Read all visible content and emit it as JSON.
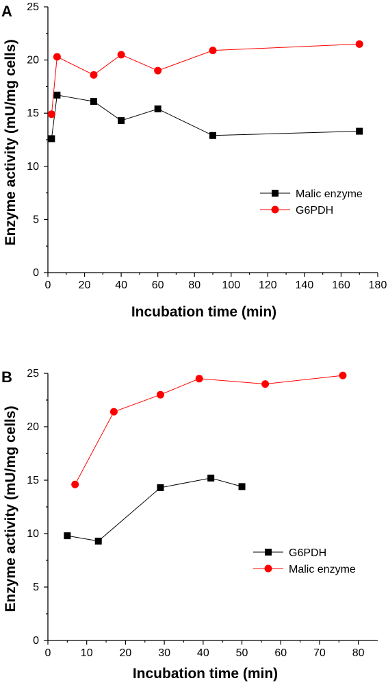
{
  "chart_data": [
    {
      "type": "line",
      "panel_label": "A",
      "xlabel": "Incubation time (min)",
      "ylabel": "Enzyme activity (mU/mg cells)",
      "xlim": [
        0,
        180
      ],
      "ylim": [
        0,
        25
      ],
      "xticks": [
        0,
        20,
        40,
        60,
        80,
        100,
        120,
        140,
        160,
        180
      ],
      "yticks": [
        0,
        5,
        10,
        15,
        20,
        25
      ],
      "grid": false,
      "legend_position": "center-right",
      "series": [
        {
          "name": "Malic enzyme",
          "color": "#000000",
          "marker": "square",
          "x": [
            2,
            5,
            25,
            40,
            60,
            90,
            170
          ],
          "y": [
            12.6,
            16.7,
            16.1,
            14.3,
            15.4,
            12.9,
            13.3
          ]
        },
        {
          "name": "G6PDH",
          "color": "#ff0000",
          "marker": "circle",
          "x": [
            2,
            5,
            25,
            40,
            60,
            90,
            170
          ],
          "y": [
            14.9,
            20.3,
            18.6,
            20.5,
            19.0,
            20.9,
            21.5
          ]
        }
      ]
    },
    {
      "type": "line",
      "panel_label": "B",
      "xlabel": "Incubation time (min)",
      "ylabel": "Enzyme activity (mU/mg cells)",
      "xlim": [
        0,
        85
      ],
      "ylim": [
        0,
        25
      ],
      "xticks": [
        0,
        10,
        20,
        30,
        40,
        50,
        60,
        70,
        80
      ],
      "yticks": [
        0,
        5,
        10,
        15,
        20,
        25
      ],
      "grid": false,
      "legend_position": "lower-right",
      "series": [
        {
          "name": "G6PDH",
          "color": "#000000",
          "marker": "square",
          "x": [
            5,
            13,
            29,
            42,
            50
          ],
          "y": [
            9.8,
            9.3,
            14.3,
            15.2,
            14.4
          ]
        },
        {
          "name": "Malic enzyme",
          "color": "#ff0000",
          "marker": "circle",
          "x": [
            7,
            17,
            29,
            39,
            56,
            76
          ],
          "y": [
            14.6,
            21.4,
            23.0,
            24.5,
            24.0,
            24.8
          ]
        }
      ]
    }
  ]
}
